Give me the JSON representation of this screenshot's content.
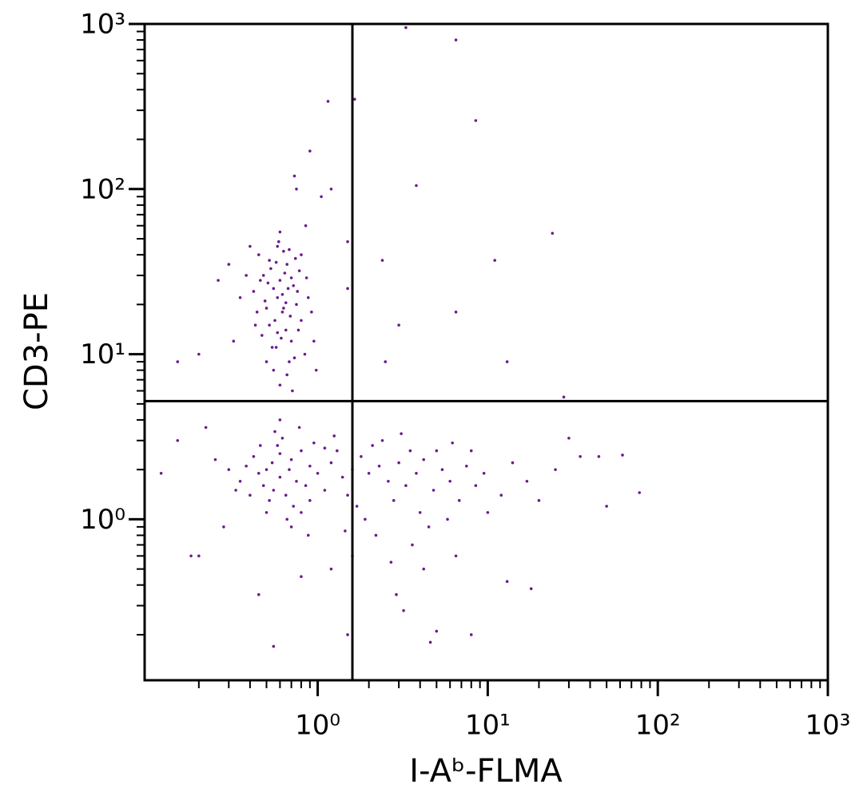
{
  "chart_data": {
    "type": "scatter",
    "x_label": "I-Aᵇ-FLMA",
    "y_label": "CD3-PE",
    "log_scale": true,
    "color": "#6b1b8f",
    "xlim": [
      0.096,
      1000
    ],
    "ylim": [
      0.106,
      1000
    ],
    "xticks": [
      {
        "value": 1,
        "label": "10⁰"
      },
      {
        "value": 10,
        "label": "10¹"
      },
      {
        "value": 100,
        "label": "10²"
      },
      {
        "value": 1000,
        "label": "10³"
      }
    ],
    "yticks": [
      {
        "value": 1,
        "label": "10⁰"
      },
      {
        "value": 10,
        "label": "10¹"
      },
      {
        "value": 100,
        "label": "10²"
      },
      {
        "value": 1000,
        "label": "10³"
      }
    ],
    "xminorticks": [
      0.2,
      0.3,
      0.4,
      0.5,
      0.6,
      0.7,
      0.8,
      0.9,
      2,
      3,
      4,
      5,
      6,
      7,
      8,
      9,
      20,
      30,
      40,
      50,
      60,
      70,
      80,
      90,
      200,
      300,
      400,
      500,
      600,
      700,
      800,
      900
    ],
    "yminorticks": [
      0.2,
      0.3,
      0.4,
      0.5,
      0.6,
      0.7,
      0.8,
      0.9,
      2,
      3,
      4,
      5,
      6,
      7,
      8,
      9,
      20,
      30,
      40,
      50,
      60,
      70,
      80,
      90,
      200,
      300,
      400,
      500,
      600,
      700,
      800,
      900
    ],
    "gates": {
      "x": 1.6,
      "y": 5.2
    },
    "x": [
      0.55,
      0.62,
      0.48,
      0.7,
      0.58,
      0.66,
      0.52,
      0.75,
      0.6,
      0.45,
      0.68,
      0.57,
      0.8,
      0.63,
      0.5,
      0.72,
      0.55,
      0.65,
      0.42,
      0.78,
      0.6,
      0.53,
      0.69,
      0.47,
      0.84,
      0.58,
      0.62,
      0.74,
      0.51,
      0.66,
      0.44,
      0.88,
      0.57,
      0.7,
      0.61,
      0.49,
      0.77,
      0.64,
      0.56,
      0.73,
      0.38,
      0.92,
      0.59,
      0.67,
      0.54,
      0.8,
      0.46,
      0.71,
      0.63,
      0.52,
      0.35,
      0.95,
      0.6,
      0.5,
      0.76,
      0.68,
      0.43,
      0.86,
      0.58,
      0.65,
      0.3,
      0.26,
      0.98,
      0.85,
      0.75,
      0.9,
      0.73,
      1.05,
      0.32,
      0.4,
      0.5,
      0.6,
      0.7,
      0.55,
      0.8,
      0.45,
      0.65,
      0.9,
      0.58,
      0.75,
      0.42,
      1.0,
      0.62,
      0.52,
      0.85,
      0.68,
      1.2,
      0.48,
      0.95,
      0.72,
      1.4,
      0.56,
      1.1,
      0.38,
      0.8,
      1.3,
      0.6,
      1.6,
      0.46,
      0.9,
      0.35,
      1.8,
      0.66,
      1.5,
      0.54,
      2.0,
      0.78,
      2.3,
      0.4,
      1.1,
      2.6,
      0.7,
      3.0,
      0.3,
      1.7,
      3.3,
      0.6,
      2.1,
      3.8,
      0.5,
      4.2,
      1.25,
      2.8,
      4.8,
      0.88,
      5.4,
      1.9,
      3.5,
      6.0,
      0.33,
      2.4,
      6.8,
      4.0,
      1.45,
      7.5,
      3.1,
      5.0,
      0.25,
      8.5,
      2.2,
      4.5,
      9.5,
      6.2,
      12,
      3.6,
      14,
      5.8,
      17,
      2.7,
      20,
      8,
      1.6,
      25,
      4.2,
      30,
      10,
      35,
      2.9,
      45,
      62,
      78,
      50,
      6.5,
      3.2,
      4.6,
      5.0,
      0.55,
      1.5,
      8,
      13,
      18,
      0.2,
      0.18,
      0.15,
      0.12,
      0.22,
      0.28,
      1.2,
      0.8,
      0.45,
      1.15,
      1.65,
      3.3,
      6.5,
      8.5,
      3.8,
      24,
      11,
      2.4,
      3.0,
      6.5,
      2.5,
      13,
      28,
      1.5,
      1.5,
      1.2,
      0.2,
      0.15
    ],
    "values": [
      25,
      18,
      30,
      12,
      22,
      35,
      15,
      20,
      28,
      40,
      9,
      11,
      16,
      42,
      19,
      26,
      8,
      14,
      24,
      32,
      6.5,
      33,
      17,
      13,
      10,
      45,
      23,
      38,
      27,
      7.5,
      18,
      22,
      36,
      29,
      12.5,
      21,
      14,
      31,
      16,
      9.5,
      30,
      18,
      48,
      25,
      11,
      40,
      28,
      6,
      19,
      37,
      22,
      12,
      55,
      9,
      24,
      43,
      15,
      29,
      13.5,
      20.5,
      35,
      28,
      8,
      60,
      100,
      170,
      120,
      90,
      12,
      45,
      2,
      1.8,
      2.3,
      1.5,
      2.6,
      1.9,
      1.4,
      2.1,
      2.8,
      1.7,
      2.4,
      1.9,
      3.1,
      1.3,
      1.6,
      2.0,
      2.2,
      1.6,
      2.9,
      1.2,
      1.8,
      3.4,
      1.5,
      2.1,
      1.1,
      2.6,
      2.5,
      2.0,
      2.8,
      1.3,
      1.7,
      2.4,
      1.0,
      1.4,
      2.2,
      1.9,
      3.6,
      2.1,
      1.4,
      2.7,
      1.7,
      0.9,
      2.2,
      2.0,
      1.2,
      1.6,
      4.0,
      2.8,
      1.9,
      1.1,
      2.3,
      3.2,
      1.3,
      1.5,
      0.8,
      2.0,
      1.0,
      2.6,
      1.7,
      1.5,
      3.0,
      1.3,
      1.1,
      0.85,
      2.1,
      3.3,
      2.6,
      2.3,
      1.6,
      0.8,
      0.9,
      1.9,
      2.9,
      1.4,
      0.7,
      2.2,
      1.0,
      1.7,
      0.55,
      1.3,
      2.6,
      0.6,
      2.0,
      0.5,
      3.1,
      1.1,
      2.4,
      0.35,
      2.4,
      2.45,
      1.45,
      1.2,
      0.6,
      0.28,
      0.18,
      0.21,
      0.17,
      0.2,
      0.2,
      0.42,
      0.38,
      0.6,
      0.6,
      3.0,
      1.9,
      3.6,
      0.9,
      0.5,
      0.45,
      0.35,
      340,
      350,
      950,
      800,
      260,
      105,
      54,
      37,
      37,
      15,
      18,
      9,
      9,
      5.5,
      48,
      25,
      100,
      10,
      9
    ]
  }
}
